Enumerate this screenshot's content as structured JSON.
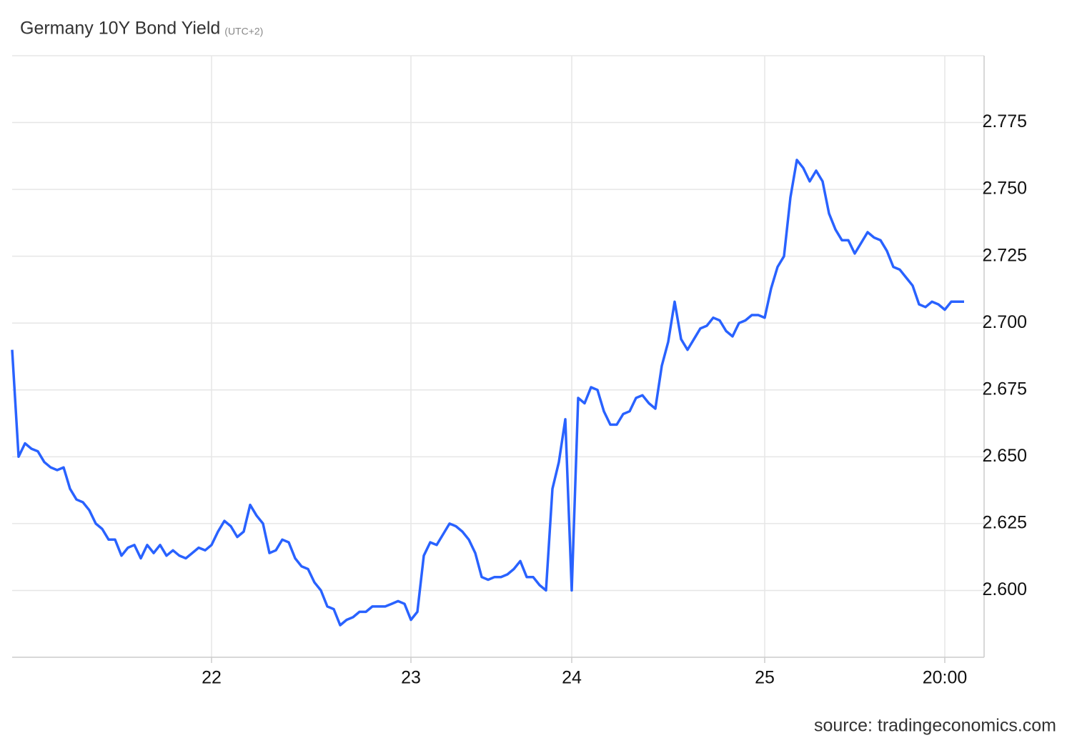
{
  "chart_data": {
    "type": "line",
    "title": "Germany 10Y Bond Yield",
    "subtitle": "(UTC+2)",
    "source": "source: tradingeconomics.com",
    "color": "#2962ff",
    "grid": true,
    "categories": [
      null,
      null,
      null,
      null,
      null,
      null,
      null,
      null,
      null,
      null,
      null,
      null,
      null,
      null,
      null,
      null,
      null,
      null,
      null,
      null,
      null,
      null,
      null,
      null,
      null,
      null,
      null,
      null,
      null,
      null,
      null,
      "22",
      null,
      null,
      null,
      null,
      null,
      null,
      null,
      null,
      null,
      null,
      null,
      null,
      null,
      null,
      null,
      null,
      null,
      null,
      null,
      null,
      null,
      null,
      null,
      null,
      null,
      null,
      null,
      null,
      null,
      null,
      "23",
      null,
      null,
      null,
      null,
      null,
      null,
      null,
      null,
      null,
      null,
      null,
      null,
      null,
      null,
      null,
      null,
      null,
      null,
      null,
      null,
      null,
      null,
      null,
      null,
      "24",
      null,
      null,
      null,
      null,
      null,
      null,
      null,
      null,
      null,
      null,
      null,
      null,
      null,
      null,
      null,
      null,
      null,
      null,
      null,
      null,
      null,
      null,
      null,
      null,
      null,
      null,
      null,
      null,
      null,
      "25",
      null,
      null,
      null,
      null,
      null,
      null,
      null,
      null,
      null,
      null,
      null,
      null,
      null,
      null,
      null,
      null,
      null,
      null,
      null,
      null,
      null,
      null,
      null,
      null,
      null,
      null,
      null,
      "20:00",
      null,
      null,
      null
    ],
    "values": [
      2.69,
      2.65,
      2.655,
      2.653,
      2.652,
      2.648,
      2.646,
      2.645,
      2.646,
      2.638,
      2.634,
      2.633,
      2.63,
      2.625,
      2.623,
      2.619,
      2.619,
      2.613,
      2.616,
      2.617,
      2.612,
      2.617,
      2.614,
      2.617,
      2.613,
      2.615,
      2.613,
      2.612,
      2.614,
      2.616,
      2.615,
      2.617,
      2.622,
      2.626,
      2.624,
      2.62,
      2.622,
      2.632,
      2.628,
      2.625,
      2.614,
      2.615,
      2.619,
      2.618,
      2.612,
      2.609,
      2.608,
      2.603,
      2.6,
      2.594,
      2.593,
      2.587,
      2.589,
      2.59,
      2.592,
      2.592,
      2.594,
      2.594,
      2.594,
      2.595,
      2.596,
      2.595,
      2.589,
      2.592,
      2.613,
      2.618,
      2.617,
      2.621,
      2.625,
      2.624,
      2.622,
      2.619,
      2.614,
      2.605,
      2.604,
      2.605,
      2.605,
      2.606,
      2.608,
      2.611,
      2.605,
      2.605,
      2.602,
      2.6,
      2.638,
      2.648,
      2.664,
      2.6,
      2.672,
      2.67,
      2.676,
      2.675,
      2.667,
      2.662,
      2.662,
      2.666,
      2.667,
      2.672,
      2.673,
      2.67,
      2.668,
      2.684,
      2.693,
      2.708,
      2.694,
      2.69,
      2.694,
      2.698,
      2.699,
      2.702,
      2.701,
      2.697,
      2.695,
      2.7,
      2.701,
      2.703,
      2.703,
      2.702,
      2.713,
      2.721,
      2.725,
      2.747,
      2.761,
      2.758,
      2.753,
      2.757,
      2.753,
      2.741,
      2.735,
      2.731,
      2.731,
      2.726,
      2.73,
      2.734,
      2.732,
      2.731,
      2.727,
      2.721,
      2.72,
      2.717,
      2.714,
      2.707,
      2.706,
      2.708,
      2.707,
      2.705,
      2.708,
      2.708,
      2.708
    ],
    "ylim": [
      2.575,
      2.8
    ],
    "yticks": [
      {
        "value": 2.6,
        "label": "2.600"
      },
      2.625,
      {
        "value": 2.65,
        "label": "2.650"
      },
      2.675,
      {
        "value": 2.7,
        "label": "2.700"
      },
      2.725,
      {
        "value": 2.75,
        "label": "2.750"
      },
      2.775
    ]
  }
}
